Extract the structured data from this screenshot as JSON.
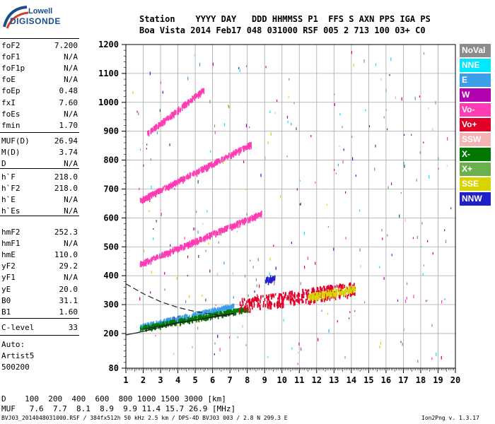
{
  "logo": {
    "line1": "Lowell",
    "line2": "DIGISONDE"
  },
  "header": {
    "row1": "Station    YYYY DAY   DDD HHMMSS P1  FFS S AXN PPS IGA PS",
    "row2": "Boa Vista 2014 Feb17 048 031000 RSF 005 2 713 100 03+ C0"
  },
  "params": {
    "group1": [
      {
        "name": "foF2",
        "value": "7.200"
      },
      {
        "name": "foF1",
        "value": "N/A"
      },
      {
        "name": "foF1p",
        "value": "N/A"
      },
      {
        "name": "foE",
        "value": "N/A"
      },
      {
        "name": "foEp",
        "value": "0.48"
      },
      {
        "name": "fxI",
        "value": "7.60"
      },
      {
        "name": "foEs",
        "value": "N/A"
      },
      {
        "name": "fmin",
        "value": "1.70"
      }
    ],
    "group2": [
      {
        "name": "MUF(D)",
        "value": "26.94"
      },
      {
        "name": "M(D)",
        "value": "3.74"
      },
      {
        "name": "D",
        "value": "N/A"
      }
    ],
    "group3": [
      {
        "name": "h`F",
        "value": "218.0"
      },
      {
        "name": "h`F2",
        "value": "218.0"
      },
      {
        "name": "h`E",
        "value": "N/A"
      },
      {
        "name": "h`Es",
        "value": "N/A"
      }
    ],
    "group4": [
      {
        "name": "hmF2",
        "value": "252.3"
      },
      {
        "name": "hmF1",
        "value": "N/A"
      },
      {
        "name": "hmE",
        "value": "110.0"
      },
      {
        "name": "yF2",
        "value": "29.2"
      },
      {
        "name": "yF1",
        "value": "N/A"
      },
      {
        "name": "yE",
        "value": "20.0"
      },
      {
        "name": "B0",
        "value": "31.1"
      },
      {
        "name": "B1",
        "value": "1.60"
      }
    ],
    "group5": [
      {
        "name": "C-level",
        "value": "33"
      }
    ]
  },
  "autoscaling": {
    "line1": "Auto:",
    "line2": "Artist5",
    "line3": "500200"
  },
  "legend": [
    {
      "label": "NoVal",
      "color": "#8c8c8c"
    },
    {
      "label": "NNE",
      "color": "#00e8ff"
    },
    {
      "label": "E",
      "color": "#3a9fe8"
    },
    {
      "label": "W",
      "color": "#b000b0"
    },
    {
      "label": "Vo-",
      "color": "#ff3cb4"
    },
    {
      "label": "Vo+",
      "color": "#e0002a"
    },
    {
      "label": "SSW",
      "color": "#f4b4b4"
    },
    {
      "label": "X-",
      "color": "#007800"
    },
    {
      "label": "X+",
      "color": "#6ab04c"
    },
    {
      "label": "SSE",
      "color": "#d8d400"
    },
    {
      "label": "NNW",
      "color": "#2020c8"
    }
  ],
  "muf_table": {
    "row1": "D    100  200  400  600  800 1000 1500 3000 [km]",
    "row2": "MUF   7.6  7.7  8.1  8.9  9.9 11.4 15.7 26.9 [MHz]"
  },
  "footer": {
    "left": "BVJ03_2014048031000.RSF / 384fx512h 50 kHz 2.5 km / DPS-4D BVJ03 003 / 2.8 N 299.3 E",
    "right": "Ion2Png v. 1.3.17"
  },
  "chart_data": {
    "type": "scatter",
    "xlim": [
      1,
      20
    ],
    "ylim": [
      80,
      1200
    ],
    "x_ticks": [
      1,
      2,
      3,
      4,
      5,
      6,
      7,
      8,
      9,
      10,
      11,
      12,
      13,
      14,
      15,
      16,
      17,
      18,
      19,
      20
    ],
    "y_ticks": [
      80,
      200,
      300,
      400,
      500,
      600,
      700,
      800,
      900,
      1000,
      1100,
      1200
    ],
    "grid": true,
    "traces": [
      {
        "name": "F-trace 1st hop",
        "color": "#3a9fe8",
        "x_range": [
          1.8,
          7.2
        ],
        "h_start": 228,
        "h_end": 300
      },
      {
        "name": "F-trace 1st hop X",
        "color": "#007800",
        "x_range": [
          1.8,
          8.0
        ],
        "h_start": 222,
        "h_end": 290
      },
      {
        "name": "spread F",
        "color": "#e0002a",
        "x_range": [
          7.5,
          14.2
        ],
        "h_start": 300,
        "h_end": 360
      },
      {
        "name": "SSE cluster",
        "color": "#d8d400",
        "x_range": [
          11.5,
          14.2
        ],
        "h_start": 330,
        "h_end": 360
      },
      {
        "name": "NNW cluster",
        "color": "#2020c8",
        "x_range": [
          9.0,
          9.6
        ],
        "h_start": 385,
        "h_end": 400
      },
      {
        "name": "2nd hop",
        "color": "#ff3cb4",
        "x_range": [
          1.8,
          8.8
        ],
        "h_start": 445,
        "h_end": 620
      },
      {
        "name": "3rd hop",
        "color": "#ff3cb4",
        "x_range": [
          1.8,
          8.2
        ],
        "h_start": 665,
        "h_end": 860
      },
      {
        "name": "4th hop",
        "color": "#ff3cb4",
        "x_range": [
          2.2,
          5.5
        ],
        "h_start": 895,
        "h_end": 1050
      }
    ],
    "profile_lines": [
      {
        "name": "o-trace model",
        "style": "solid",
        "x": [
          1.0,
          2.0,
          3.0,
          4.0,
          5.0,
          6.0,
          7.2,
          7.2
        ],
        "h": [
          195,
          207,
          222,
          236,
          246,
          256,
          268,
          260
        ]
      },
      {
        "name": "o-trace model lower",
        "style": "solid",
        "x": [
          2.0,
          3.0,
          4.0,
          5.0,
          6.0,
          7.2
        ],
        "h": [
          215,
          226,
          238,
          247,
          258,
          270
        ]
      },
      {
        "name": "electron density profile",
        "style": "dashed",
        "x": [
          1.0,
          2.0,
          3.0,
          4.0,
          5.0,
          6.0,
          7.0
        ],
        "h": [
          372,
          338,
          310,
          290,
          276,
          266,
          258
        ]
      }
    ]
  }
}
